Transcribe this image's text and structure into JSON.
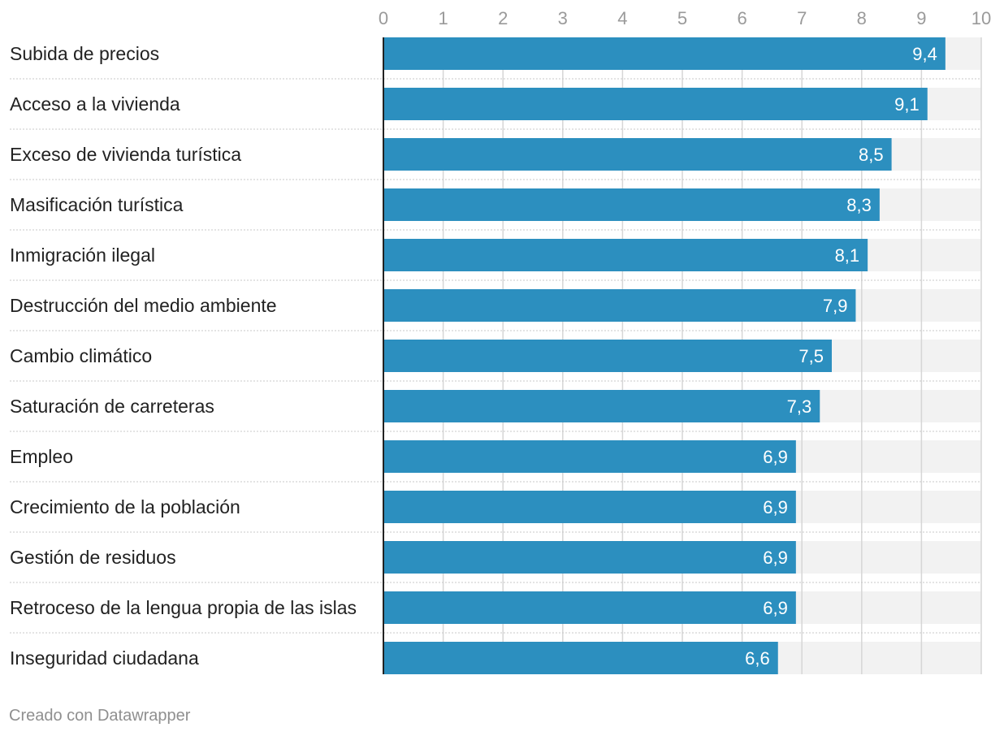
{
  "chart_data": {
    "type": "bar",
    "orientation": "horizontal",
    "categories": [
      "Subida de precios",
      "Acceso a la vivienda",
      "Exceso de vivienda turística",
      "Masificación turística",
      "Inmigración ilegal",
      "Destrucción del medio ambiente",
      "Cambio climático",
      "Saturación de carreteras",
      "Empleo",
      "Crecimiento de la población",
      "Gestión de residuos",
      "Retroceso de la lengua propia de las islas",
      "Inseguridad ciudadana"
    ],
    "values": [
      9.4,
      9.1,
      8.5,
      8.3,
      8.1,
      7.9,
      7.5,
      7.3,
      6.9,
      6.9,
      6.9,
      6.9,
      6.6
    ],
    "value_labels": [
      "9,4",
      "9,1",
      "8,5",
      "8,3",
      "8,1",
      "7,9",
      "7,5",
      "7,3",
      "6,9",
      "6,9",
      "6,9",
      "6,9",
      "6,6"
    ],
    "xlim": [
      0,
      10
    ],
    "ticks": [
      0,
      1,
      2,
      3,
      4,
      5,
      6,
      7,
      8,
      9,
      10
    ],
    "tick_labels": [
      "0",
      "1",
      "2",
      "3",
      "4",
      "5",
      "6",
      "7",
      "8",
      "9",
      "10"
    ],
    "title": "",
    "xlabel": "",
    "ylabel": "",
    "grid": true,
    "bar_color": "#2c8fbf",
    "track_color": "#f2f2f2",
    "grid_color": "#d6d6d6"
  },
  "footer": {
    "credit": "Creado con Datawrapper"
  }
}
